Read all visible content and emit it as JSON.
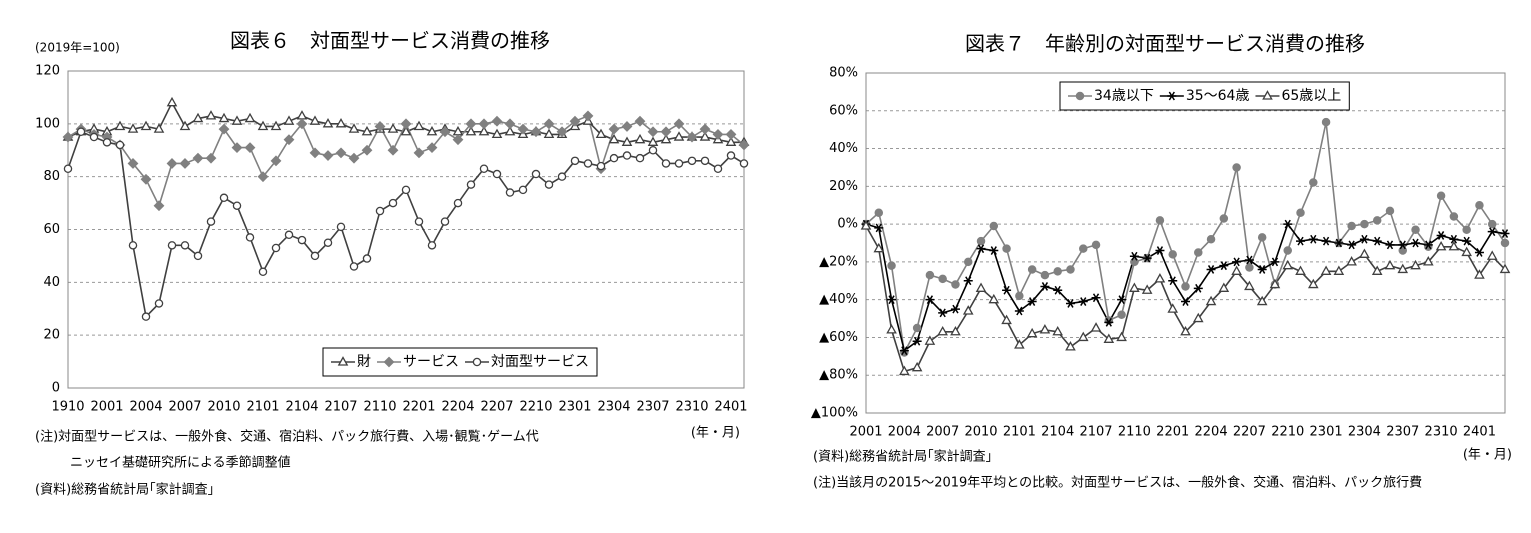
{
  "chart_data": [
    {
      "type": "line",
      "title": "図表６　対面型サービス消費の推移",
      "y_unit": "(2019年=100)",
      "x_label": "(年・月)",
      "notes": [
        "(注)対面型サービスは、一般外食、交通、宿泊料、パック旅行費、入場･観覧･ゲーム代",
        "ニッセイ基礎研究所による季節調整値",
        "(資料)総務省統計局｢家計調査｣"
      ],
      "categories": [
        "1910",
        null,
        null,
        "2001",
        null,
        null,
        "2004",
        null,
        null,
        "2007",
        null,
        null,
        "2010",
        null,
        null,
        "2101",
        null,
        null,
        "2104",
        null,
        null,
        "2107",
        null,
        null,
        "2110",
        null,
        null,
        "2201",
        null,
        null,
        "2204",
        null,
        null,
        "2207",
        null,
        null,
        "2210",
        null,
        null,
        "2301",
        null,
        null,
        "2304",
        null,
        null,
        "2307",
        null,
        null,
        "2310",
        null,
        null,
        "2401",
        null
      ],
      "series": [
        {
          "name": "財",
          "color": "#404040",
          "marker": "open-triangle",
          "values": [
            95,
            97,
            98,
            97,
            99,
            98,
            99,
            98,
            108,
            99,
            102,
            103,
            102,
            101,
            102,
            99,
            99,
            101,
            103,
            101,
            100,
            100,
            98,
            97,
            98,
            98,
            97,
            99,
            97,
            98,
            97,
            97,
            97,
            96,
            97,
            96,
            97,
            96,
            96,
            99,
            101,
            96,
            94,
            93,
            94,
            93,
            94,
            95,
            95,
            95,
            94,
            93,
            93
          ]
        },
        {
          "name": "サービス",
          "color": "#808080",
          "marker": "diamond",
          "values": [
            95,
            98,
            96,
            95,
            92,
            85,
            79,
            69,
            85,
            85,
            87,
            87,
            98,
            91,
            91,
            80,
            86,
            94,
            100,
            89,
            88,
            89,
            87,
            90,
            99,
            90,
            100,
            89,
            91,
            97,
            94,
            100,
            100,
            101,
            100,
            98,
            97,
            100,
            97,
            101,
            103,
            83,
            98,
            99,
            101,
            97,
            97,
            100,
            95,
            98,
            96,
            96,
            92
          ]
        },
        {
          "name": "対面型サービス",
          "color": "#404040",
          "marker": "open-circle",
          "values": [
            83,
            97,
            95,
            93,
            92,
            54,
            27,
            32,
            54,
            54,
            50,
            63,
            72,
            69,
            57,
            44,
            53,
            58,
            56,
            50,
            55,
            61,
            46,
            49,
            67,
            70,
            75,
            63,
            54,
            63,
            70,
            77,
            83,
            81,
            74,
            75,
            81,
            77,
            80,
            86,
            85,
            84,
            87,
            88,
            87,
            90,
            85,
            85,
            86,
            86,
            83,
            88,
            85
          ]
        }
      ],
      "ylim": [
        0,
        120
      ],
      "yticks": [
        0,
        20,
        40,
        60,
        80,
        100,
        120
      ],
      "grid": true,
      "legend": "bottom"
    },
    {
      "type": "line",
      "title": "図表７　年齢別の対面型サービス消費の推移",
      "x_label": "(年・月)",
      "notes": [
        "(資料)総務省統計局｢家計調査｣",
        "(注)当該月の2015～2019年平均との比較。対面型サービスは、一般外食、交通、宿泊料、パック旅行費"
      ],
      "categories": [
        "2001",
        null,
        null,
        "2004",
        null,
        null,
        "2007",
        null,
        null,
        "2010",
        null,
        null,
        "2101",
        null,
        null,
        "2104",
        null,
        null,
        "2107",
        null,
        null,
        "2110",
        null,
        null,
        "2201",
        null,
        null,
        "2204",
        null,
        null,
        "2207",
        null,
        null,
        "2210",
        null,
        null,
        "2301",
        null,
        null,
        "2304",
        null,
        null,
        "2307",
        null,
        null,
        "2310",
        null,
        null,
        "2401",
        null,
        null
      ],
      "series": [
        {
          "name": "34歳以下",
          "color": "#808080",
          "marker": "circle",
          "values": [
            0,
            6,
            -22,
            -68,
            -55,
            -27,
            -29,
            -32,
            -20,
            -9,
            -1,
            -13,
            -38,
            -24,
            -27,
            -25,
            -24,
            -13,
            -11,
            -51,
            -48,
            -20,
            -18,
            2,
            -16,
            -33,
            -15,
            -8,
            3,
            30,
            -23,
            -7,
            -32,
            -14,
            6,
            22,
            54,
            -10,
            -1,
            0,
            2,
            7,
            -14,
            -3,
            -12,
            15,
            4,
            -3,
            10,
            0,
            -10
          ]
        },
        {
          "name": "35～64歳",
          "color": "#000000",
          "marker": "star",
          "values": [
            0,
            -2,
            -40,
            -67,
            -62,
            -40,
            -47,
            -45,
            -30,
            -13,
            -14,
            -35,
            -46,
            -41,
            -33,
            -35,
            -42,
            -41,
            -39,
            -52,
            -40,
            -17,
            -18,
            -14,
            -30,
            -41,
            -34,
            -24,
            -22,
            -20,
            -19,
            -24,
            -20,
            0,
            -9,
            -8,
            -9,
            -10,
            -11,
            -8,
            -9,
            -11,
            -11,
            -10,
            -11,
            -6,
            -8,
            -9,
            -15,
            -4,
            -5
          ]
        },
        {
          "name": "65歳以上",
          "color": "#404040",
          "marker": "open-triangle",
          "values": [
            -1,
            -13,
            -56,
            -78,
            -76,
            -62,
            -57,
            -57,
            -46,
            -34,
            -40,
            -51,
            -64,
            -58,
            -56,
            -57,
            -65,
            -60,
            -55,
            -61,
            -60,
            -34,
            -35,
            -29,
            -45,
            -57,
            -50,
            -41,
            -34,
            -25,
            -33,
            -41,
            -32,
            -22,
            -25,
            -32,
            -25,
            -25,
            -20,
            -16,
            -25,
            -22,
            -24,
            -22,
            -20,
            -12,
            -12,
            -15,
            -27,
            -17,
            -24
          ]
        }
      ],
      "ylim": [
        -100,
        80
      ],
      "yticks": [
        {
          "value": -100,
          "label": "▲100%"
        },
        {
          "value": -80,
          "label": "▲80%"
        },
        {
          "value": -60,
          "label": "▲60%"
        },
        {
          "value": -40,
          "label": "▲40%"
        },
        {
          "value": -20,
          "label": "▲20%"
        },
        {
          "value": 0,
          "label": "0%"
        },
        {
          "value": 20,
          "label": "20%"
        },
        {
          "value": 40,
          "label": "40%"
        },
        {
          "value": 60,
          "label": "60%"
        },
        {
          "value": 80,
          "label": "80%"
        }
      ],
      "grid": true,
      "legend": "top"
    }
  ]
}
